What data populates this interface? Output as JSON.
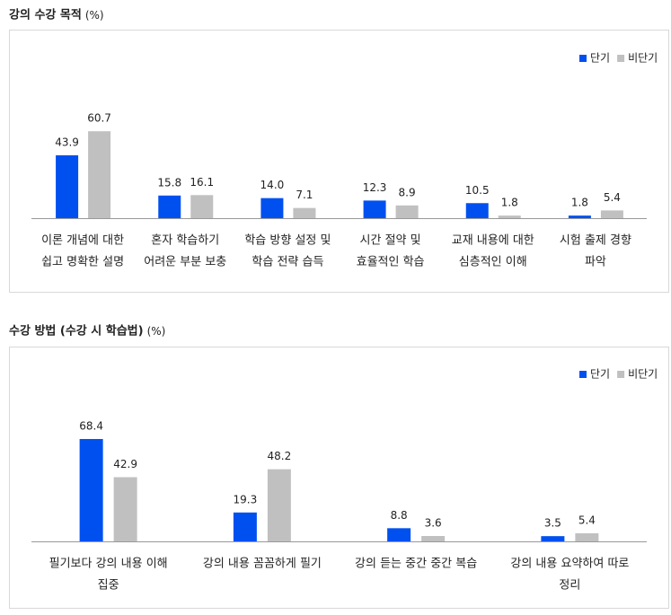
{
  "chart_data": [
    {
      "type": "bar",
      "title": "강의 수강 목적",
      "unit": "(%)",
      "legend": "top-right",
      "categories": [
        [
          "이론 개념에 대한",
          "쉽고 명확한 설명"
        ],
        [
          "혼자 학습하기",
          "어려운 부분 보충"
        ],
        [
          "학습 방향 설정 및",
          "학습 전략 습득"
        ],
        [
          "시간 절약 및",
          "효율적인 학습"
        ],
        [
          "교재 내용에 대한",
          "심층적인 이해"
        ],
        [
          "시험 출제 경향",
          "파악"
        ]
      ],
      "series": [
        {
          "name": "단기",
          "color": "#0050f0",
          "values": [
            43.9,
            15.8,
            14.0,
            12.3,
            10.5,
            1.8
          ],
          "value_labels": [
            "43.9",
            "15.8",
            "14.0",
            "12.3",
            "10.5",
            "1.8"
          ]
        },
        {
          "name": "비단기",
          "color": "#c0c0c0",
          "values": [
            60.7,
            16.1,
            7.1,
            8.9,
            1.8,
            5.4
          ],
          "value_labels": [
            "60.7",
            "16.1",
            "7.1",
            "8.9",
            "1.8",
            "5.4"
          ]
        }
      ]
    },
    {
      "type": "bar",
      "title": "수강 방법 (수강 시 학습법)",
      "unit": "(%)",
      "legend": "top-right",
      "categories": [
        [
          "필기보다 강의 내용 이해",
          "집중"
        ],
        [
          "강의 내용 꼼꼼하게 필기"
        ],
        [
          "강의 듣는 중간 중간 복습"
        ],
        [
          "강의 내용 요약하여 따로",
          "정리"
        ]
      ],
      "series": [
        {
          "name": "단기",
          "color": "#0050f0",
          "values": [
            68.4,
            19.3,
            8.8,
            3.5
          ],
          "value_labels": [
            "68.4",
            "19.3",
            "8.8",
            "3.5"
          ]
        },
        {
          "name": "비단기",
          "color": "#c0c0c0",
          "values": [
            42.9,
            48.2,
            3.6,
            5.4
          ],
          "value_labels": [
            "42.9",
            "48.2",
            "3.6",
            "5.4"
          ]
        }
      ]
    }
  ]
}
